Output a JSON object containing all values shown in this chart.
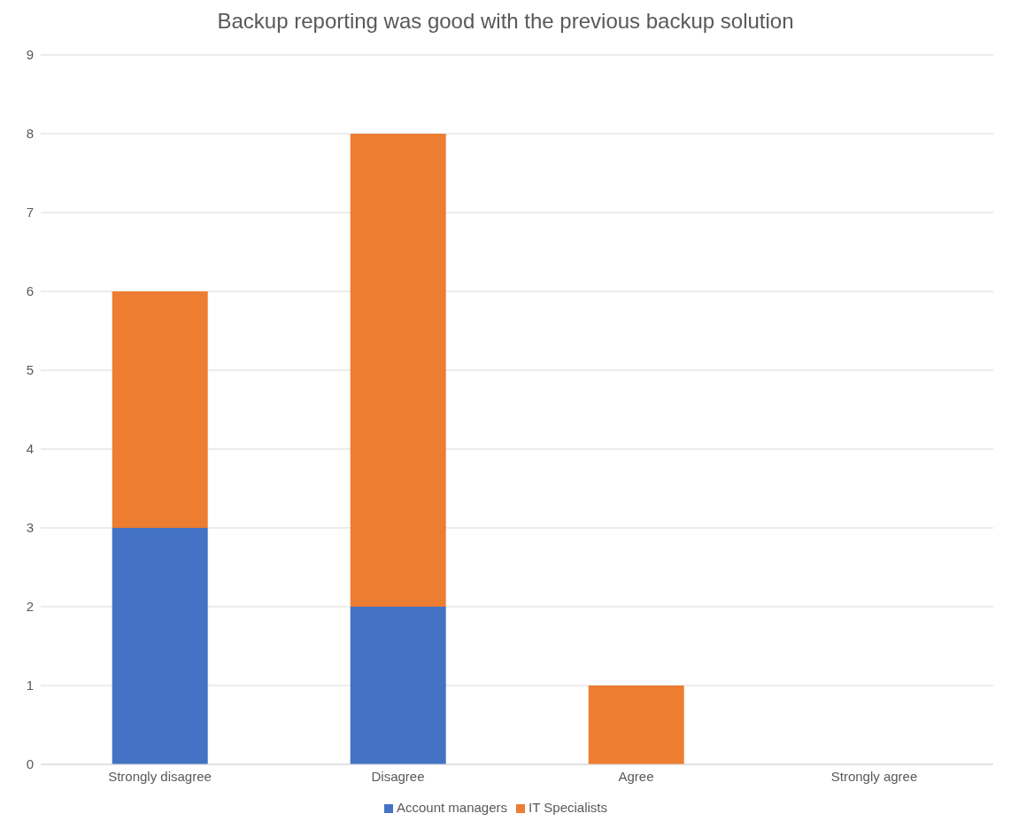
{
  "chart_data": {
    "type": "bar",
    "title": "Backup reporting was good with the previous backup solution",
    "categories": [
      "Strongly disagree",
      "Disagree",
      "Agree",
      "Strongly agree"
    ],
    "stacked": true,
    "series": [
      {
        "name": "Account managers",
        "color": "#4472c4",
        "values": [
          3,
          2,
          0,
          0
        ]
      },
      {
        "name": "IT Specialists",
        "color": "#ed7d31",
        "values": [
          3,
          6,
          1,
          0
        ]
      }
    ],
    "ylim": [
      0,
      9
    ],
    "yticks": [
      0,
      1,
      2,
      3,
      4,
      5,
      6,
      7,
      8,
      9
    ],
    "grid": "y",
    "legend": "bottom"
  }
}
